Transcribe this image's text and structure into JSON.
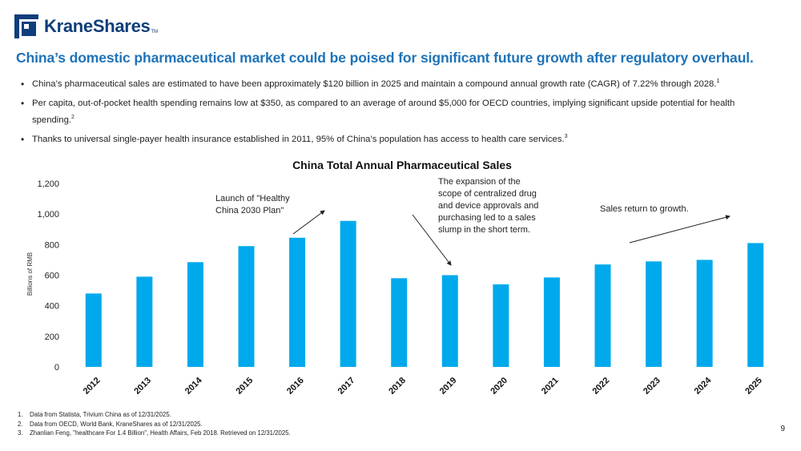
{
  "brand": {
    "name": "KraneShares",
    "trademark": "TM",
    "color": "#0f3e7a"
  },
  "headline": "China’s domestic pharmaceutical market could be poised for significant future growth after regulatory overhaul.",
  "bullets": [
    {
      "text": "China’s pharmaceutical sales are estimated to have been approximately $120 billion in 2025 and maintain a compound annual growth rate (CAGR) of 7.22% through 2028.",
      "ref": "1"
    },
    {
      "text": "Per capita, out-of-pocket health spending remains low at $350, as compared to an average of around $5,000 for OECD countries, implying significant upside potential for health spending.",
      "ref": "2"
    },
    {
      "text": "Thanks to universal single-payer health insurance established in 2011, 95% of China’s population has access to health care services.",
      "ref": "3"
    }
  ],
  "chart_data": {
    "type": "bar",
    "title": "China Total Annual Pharmaceutical Sales",
    "ylabel": "Billions of  RMB",
    "xlabel": "",
    "ylim": [
      0,
      1200
    ],
    "yticks": [
      0,
      200,
      400,
      600,
      800,
      1000,
      1200
    ],
    "ytick_labels": [
      "0",
      "200",
      "400",
      "600",
      "800",
      "1,000",
      "1,200"
    ],
    "categories": [
      "2012",
      "2013",
      "2014",
      "2015",
      "2016",
      "2017",
      "2018",
      "2019",
      "2020",
      "2021",
      "2022",
      "2023",
      "2024",
      "2025"
    ],
    "values": [
      480,
      590,
      685,
      790,
      845,
      955,
      580,
      600,
      540,
      585,
      670,
      690,
      700,
      810
    ],
    "bar_color": "#00a9ec",
    "grid": false,
    "annotations": [
      {
        "id": "healthy-china",
        "lines": [
          "Launch of \"Healthy",
          "China 2030 Plan\""
        ]
      },
      {
        "id": "sales-slump",
        "lines": [
          "The expansion of the",
          "scope of centralized drug",
          "and device approvals and",
          "purchasing led to a sales",
          "slump in the short term."
        ]
      },
      {
        "id": "sales-return",
        "lines": [
          "Sales return to growth."
        ]
      }
    ]
  },
  "footnotes": [
    {
      "num": "1.",
      "text": "Data from Statista, Trivium China as of 12/31/2025."
    },
    {
      "num": "2.",
      "text": "Data from OECD, World Bank, KraneShares as of 12/31/2025."
    },
    {
      "num": "3.",
      "text": "Zhanlian Feng, \"healthcare For 1.4 Billion\", Health Affairs, Feb 2018. Retrieved on 12/31/2025."
    }
  ],
  "page_number": "9"
}
